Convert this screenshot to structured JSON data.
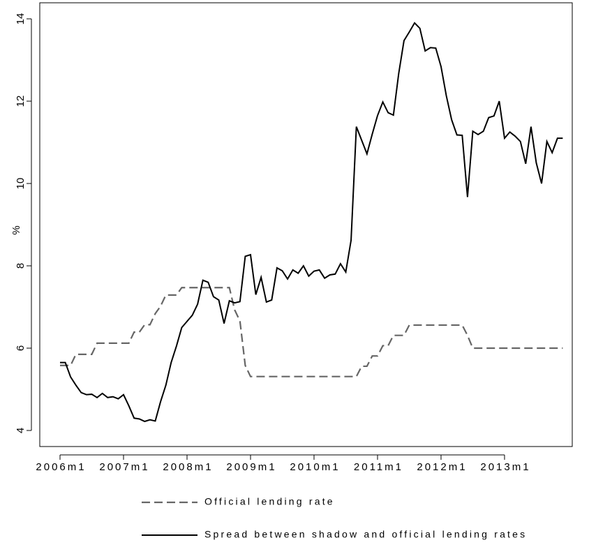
{
  "chart_data": {
    "type": "line",
    "y_label": "%",
    "categories": [
      "2006m1",
      null,
      null,
      null,
      null,
      null,
      null,
      null,
      null,
      null,
      null,
      null,
      "2007m1",
      null,
      null,
      null,
      null,
      null,
      null,
      null,
      null,
      null,
      null,
      null,
      "2008m1",
      null,
      null,
      null,
      null,
      null,
      null,
      null,
      null,
      null,
      null,
      null,
      "2009m1",
      null,
      null,
      null,
      null,
      null,
      null,
      null,
      null,
      null,
      null,
      null,
      "2010m1",
      null,
      null,
      null,
      null,
      null,
      null,
      null,
      null,
      null,
      null,
      null,
      "2011m1",
      null,
      null,
      null,
      null,
      null,
      null,
      null,
      null,
      null,
      null,
      null,
      "2012m1",
      null,
      null,
      null,
      null,
      null,
      null,
      null,
      null,
      null,
      null,
      null,
      "2013m1",
      null,
      null,
      null,
      null,
      null,
      null,
      null,
      null,
      null,
      null,
      null
    ],
    "series": [
      {
        "name": "Official lending rate",
        "color": "#666666",
        "dash": "dashed",
        "values": [
          5.58,
          5.58,
          5.58,
          5.85,
          5.85,
          5.85,
          5.85,
          6.12,
          6.12,
          6.12,
          6.12,
          6.12,
          6.12,
          6.12,
          6.39,
          6.39,
          6.57,
          6.57,
          6.84,
          7.02,
          7.29,
          7.29,
          7.29,
          7.47,
          7.47,
          7.47,
          7.47,
          7.47,
          7.47,
          7.47,
          7.47,
          7.47,
          7.47,
          6.93,
          6.66,
          5.58,
          5.31,
          5.31,
          5.31,
          5.31,
          5.31,
          5.31,
          5.31,
          5.31,
          5.31,
          5.31,
          5.31,
          5.31,
          5.31,
          5.31,
          5.31,
          5.31,
          5.31,
          5.31,
          5.31,
          5.31,
          5.31,
          5.56,
          5.56,
          5.81,
          5.81,
          6.06,
          6.06,
          6.31,
          6.31,
          6.31,
          6.56,
          6.56,
          6.56,
          6.56,
          6.56,
          6.56,
          6.56,
          6.56,
          6.56,
          6.56,
          6.56,
          6.31,
          6.0,
          6.0,
          6.0,
          6.0,
          6.0,
          6.0,
          6.0,
          6.0,
          6.0,
          6.0,
          6.0,
          6.0,
          6.0,
          6.0,
          6.0,
          6.0,
          6.0,
          6.0
        ]
      },
      {
        "name": "Spread between shadow and official lending rates",
        "color": "#000000",
        "dash": "solid",
        "values": [
          5.65,
          5.65,
          5.3,
          5.1,
          4.92,
          4.87,
          4.88,
          4.8,
          4.9,
          4.8,
          4.82,
          4.77,
          4.87,
          4.6,
          4.3,
          4.28,
          4.22,
          4.26,
          4.23,
          4.7,
          5.1,
          5.65,
          6.05,
          6.5,
          6.65,
          6.8,
          7.07,
          7.65,
          7.6,
          7.25,
          7.17,
          6.6,
          7.15,
          7.1,
          7.13,
          8.23,
          8.27,
          7.3,
          7.72,
          7.12,
          7.17,
          7.95,
          7.88,
          7.68,
          7.9,
          7.82,
          8.0,
          7.75,
          7.87,
          7.9,
          7.7,
          7.78,
          7.8,
          8.05,
          7.85,
          8.62,
          11.38,
          11.05,
          10.72,
          11.2,
          11.65,
          11.98,
          11.72,
          11.66,
          12.67,
          13.47,
          13.68,
          13.9,
          13.77,
          13.22,
          13.3,
          13.29,
          12.84,
          12.13,
          11.55,
          11.18,
          11.17,
          9.67,
          11.27,
          11.19,
          11.27,
          11.6,
          11.64,
          12.0,
          11.1,
          11.25,
          11.15,
          11.02,
          10.48,
          11.38,
          10.5,
          10.0,
          11.02,
          10.75,
          11.1,
          11.1
        ]
      }
    ],
    "ylim": [
      3.61,
      14.39
    ],
    "yticks": [
      4,
      6,
      8,
      10,
      12,
      14
    ],
    "grid": false,
    "legend": "bottom"
  }
}
